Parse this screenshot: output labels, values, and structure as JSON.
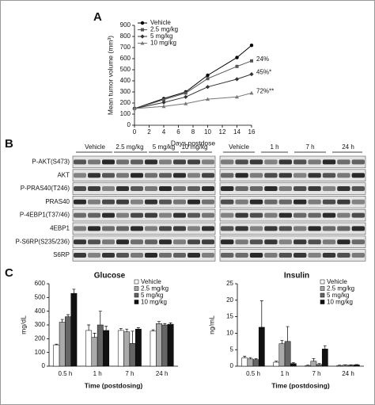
{
  "panels": [
    "A",
    "B",
    "C"
  ],
  "blot": {
    "left_headers": [
      "Vehicle",
      "2.5 mg/kg",
      "5 mg/kg",
      "10 mg/kg"
    ],
    "right_headers": [
      "Vehicle",
      "1 h",
      "7 h",
      "24 h"
    ],
    "rows": [
      "P-AKT(S473)",
      "AKT",
      "P-PRAS40(T246)",
      "PRAS40",
      "P-4EBP1(T37/46)",
      "4EBP1",
      "P-S6RP(S235/236)",
      "S6RP"
    ]
  },
  "chart_data": [
    {
      "type": "line",
      "ylabel": "Mean tumor volume (mm³)",
      "xlabel": "Days postdose",
      "x": [
        0,
        4,
        7,
        10,
        14,
        16
      ],
      "series": [
        {
          "name": "Vehicle",
          "color": "#000000",
          "values": [
            150,
            240,
            300,
            450,
            610,
            720
          ]
        },
        {
          "name": "2.5 mg/kg",
          "color": "#555555",
          "values": [
            150,
            230,
            290,
            420,
            530,
            580
          ]
        },
        {
          "name": "5 mg/kg",
          "color": "#333333",
          "values": [
            150,
            205,
            255,
            345,
            415,
            460
          ]
        },
        {
          "name": "10 mg/kg",
          "color": "#777777",
          "values": [
            150,
            170,
            195,
            235,
            255,
            290
          ]
        }
      ],
      "annotations": [
        "24%",
        "45%*",
        "72%**"
      ],
      "xlim": [
        0,
        16
      ],
      "xticks": [
        0,
        2,
        4,
        6,
        8,
        10,
        12,
        14,
        16
      ],
      "ylim": [
        0,
        900
      ],
      "yticks": [
        0,
        100,
        200,
        300,
        400,
        500,
        600,
        700,
        800,
        900
      ]
    },
    {
      "type": "bar",
      "title": "Glucose",
      "ylabel": "mg/dL",
      "xlabel": "Time (postdosing)",
      "categories": [
        "0.5 h",
        "1 h",
        "7 h",
        "24 h"
      ],
      "series": [
        {
          "name": "Vehicle",
          "color": "#ffffff",
          "values": [
            155,
            260,
            260,
            255
          ],
          "errors": [
            5,
            40,
            15,
            10
          ]
        },
        {
          "name": "2.5 mg/kg",
          "color": "#aaaaaa",
          "values": [
            320,
            210,
            250,
            310
          ],
          "errors": [
            20,
            30,
            20,
            15
          ]
        },
        {
          "name": "5 mg/kg",
          "color": "#666666",
          "values": [
            360,
            300,
            165,
            300
          ],
          "errors": [
            15,
            100,
            90,
            10
          ]
        },
        {
          "name": "10 mg/kg",
          "color": "#111111",
          "values": [
            530,
            260,
            270,
            305
          ],
          "errors": [
            30,
            30,
            10,
            10
          ]
        }
      ],
      "ylim": [
        0,
        600
      ],
      "yticks": [
        0,
        100,
        200,
        300,
        400,
        500,
        600
      ]
    },
    {
      "type": "bar",
      "title": "Insulin",
      "ylabel": "ng/mL",
      "xlabel": "Time (postdosing)",
      "categories": [
        "0.5 h",
        "1 h",
        "7 h",
        "24 h"
      ],
      "series": [
        {
          "name": "Vehicle",
          "color": "#ffffff",
          "values": [
            2.5,
            1.2,
            0.2,
            0.2
          ],
          "errors": [
            0.5,
            0.3,
            0.1,
            0.1
          ]
        },
        {
          "name": "2.5 mg/kg",
          "color": "#aaaaaa",
          "values": [
            2.2,
            6.8,
            1.5,
            0.3
          ],
          "errors": [
            0.4,
            1.0,
            0.8,
            0.1
          ]
        },
        {
          "name": "5 mg/kg",
          "color": "#666666",
          "values": [
            2.0,
            7.5,
            0.5,
            0.3
          ],
          "errors": [
            0.3,
            4.5,
            0.3,
            0.1
          ]
        },
        {
          "name": "10 mg/kg",
          "color": "#111111",
          "values": [
            11.8,
            0.8,
            5.2,
            0.4
          ],
          "errors": [
            8.0,
            0.3,
            1.0,
            0.1
          ]
        }
      ],
      "ylim": [
        0,
        25
      ],
      "yticks": [
        0,
        5,
        10,
        15,
        20,
        25
      ]
    }
  ]
}
